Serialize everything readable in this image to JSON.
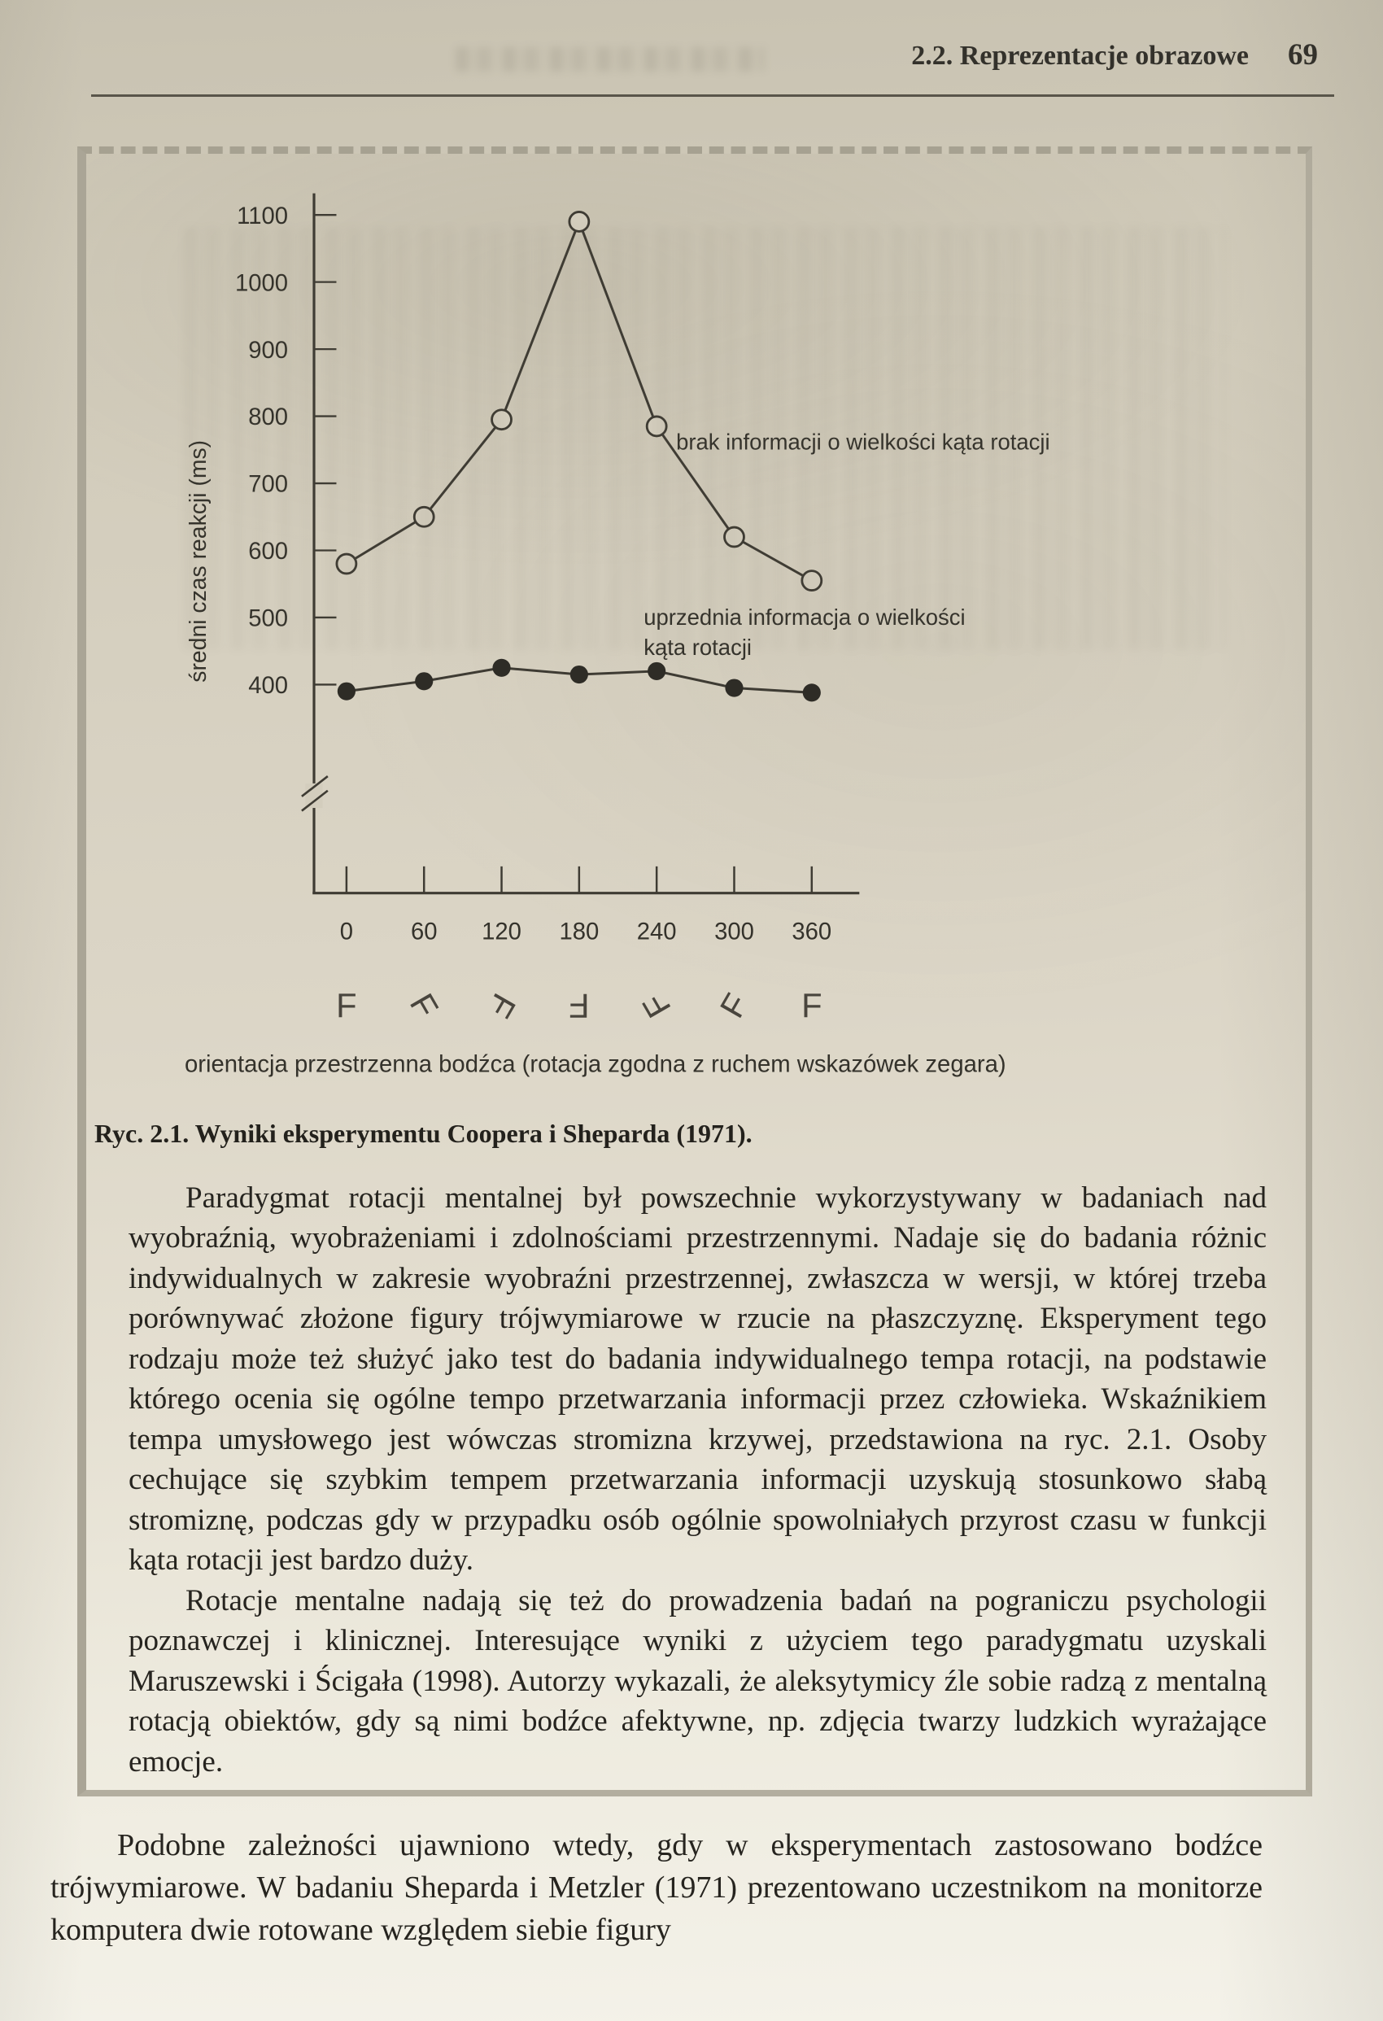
{
  "header": {
    "section_title": "2.2. Reprezentacje obrazowe",
    "page_number": "69"
  },
  "figure": {
    "caption": "Ryc. 2.1. Wyniki eksperymentu Coopera i Sheparda (1971)."
  },
  "chart_data": {
    "type": "line",
    "x": [
      0,
      60,
      120,
      180,
      240,
      300,
      360
    ],
    "x_tick_labels": [
      "0",
      "60",
      "120",
      "180",
      "240",
      "300",
      "360"
    ],
    "series": [
      {
        "name": "brak informacji o wielkości kąta rotacji",
        "marker": "open-circle",
        "values": [
          580,
          650,
          795,
          1090,
          785,
          620,
          555
        ]
      },
      {
        "name": "uprzednia informacja o wielkości kąta rotacji",
        "marker": "filled-circle",
        "values": [
          390,
          405,
          425,
          415,
          420,
          395,
          388
        ]
      }
    ],
    "annotations": [
      {
        "lines": [
          "brak informacji o wielkości kąta rotacji"
        ]
      },
      {
        "lines": [
          "uprzednia informacja o wielkości",
          "kąta rotacji"
        ]
      }
    ],
    "ylabel": "średni czas reakcji (ms)",
    "xlabel": "orientacja przestrzenna bodźca (rotacja zgodna z ruchem wskazówek zegara)",
    "yticks": [
      400,
      500,
      600,
      700,
      800,
      900,
      1000,
      1100
    ],
    "ylim": [
      400,
      1100
    ],
    "axis_break": true,
    "grid": false,
    "legend_position": "inline-annotations",
    "stimulus_glyph": "F",
    "stimulus_rotations_deg": [
      0,
      60,
      120,
      180,
      240,
      300,
      360
    ],
    "colors": {
      "ink": "#3e3b33",
      "paper": "#d3cdbd",
      "filled_marker": "#2e2c26"
    }
  },
  "body": {
    "paragraphs": [
      "Paradygmat rotacji mentalnej był powszechnie wykorzystywany w badaniach nad wyobraźnią, wyobrażeniami i zdolnościami przestrzennymi. Nadaje się do badania różnic indywidualnych w zakresie wyobraźni przestrzennej, zwłaszcza w wersji, w której trzeba porównywać złożone figury trójwymiarowe w rzucie na płaszczyznę. Eksperyment tego rodzaju może też służyć jako test do badania indywidualnego tempa rotacji, na podstawie którego ocenia się ogólne tempo przetwarzania informacji przez człowieka. Wskaźnikiem tempa umysłowego jest wówczas stromizna krzywej, przedstawiona na ryc. 2.1. Osoby cechujące się szybkim tempem przetwarzania informacji uzyskują stosunkowo słabą stromiznę, podczas gdy w przypadku osób ogólnie spowolniałych przyrost czasu w funkcji kąta rotacji jest bardzo duży.",
      "Rotacje mentalne nadają się też do prowadzenia badań na pograniczu psychologii poznawczej i klinicznej. Interesujące wyniki z użyciem tego paradygmatu uzyskali Maruszewski i Ścigała (1998). Autorzy wykazali, że aleksytymicy źle sobie radzą z mentalną rotacją obiektów, gdy są nimi bodźce afektywne, np. zdjęcia twarzy ludzkich wyrażające emocje."
    ],
    "closing_paragraph": "Podobne zależności ujawniono wtedy, gdy w eksperymentach zastosowano bodźce trójwymiarowe. W badaniu Sheparda i Metzler (1971) prezentowano uczestnikom na monitorze komputera dwie rotowane względem siebie figury"
  }
}
